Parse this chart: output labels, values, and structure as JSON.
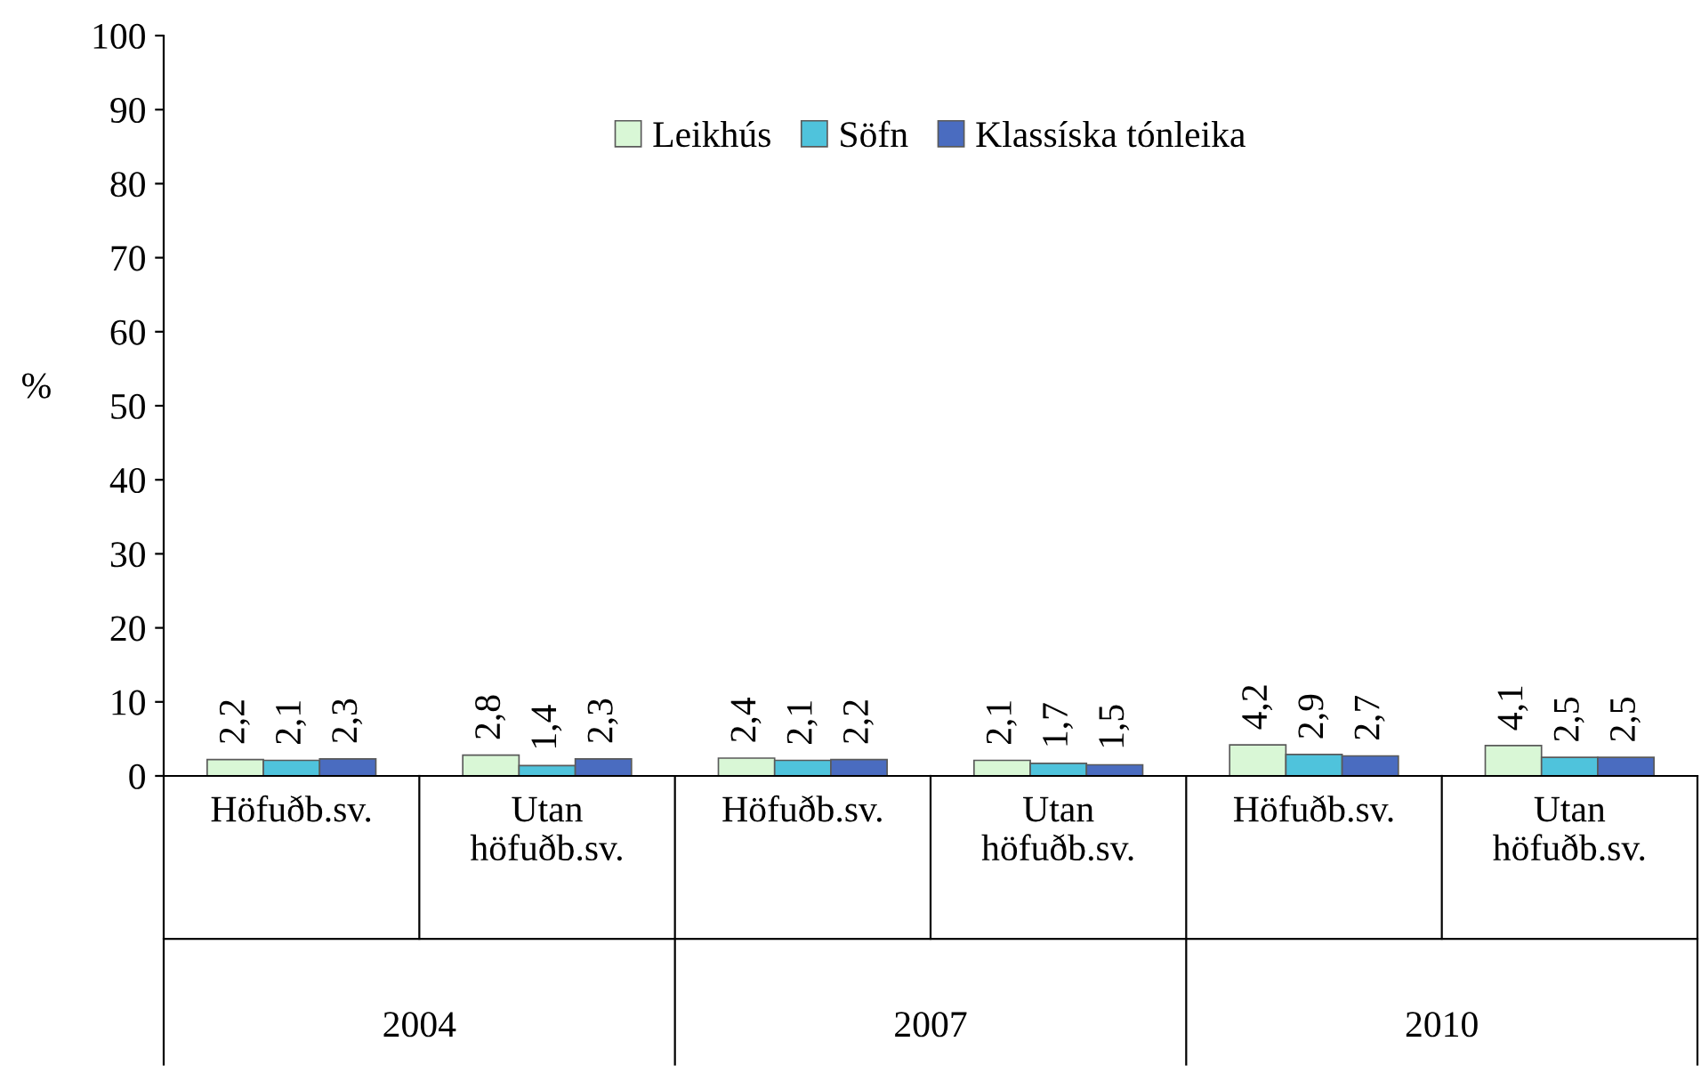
{
  "chart_data": {
    "type": "bar",
    "ylabel": "%",
    "categories": [
      "Höfuðb.sv.",
      "Utan\nhöfuðb.sv.",
      "Höfuðb.sv.",
      "Utan\nhöfuðb.sv.",
      "Höfuðb.sv.",
      "Utan\nhöfuðb.sv."
    ],
    "annotations": [
      "2004",
      "2007",
      "2010"
    ],
    "series": [
      {
        "name": "Leikhús",
        "color": "#d9f7d6",
        "values": [
          2.2,
          2.8,
          2.4,
          2.1,
          4.2,
          4.1
        ],
        "value_labels": [
          "2,2",
          "2,8",
          "2,4",
          "2,1",
          "4,2",
          "4,1"
        ]
      },
      {
        "name": "Söfn",
        "color": "#4fc3dc",
        "values": [
          2.1,
          1.4,
          2.1,
          1.7,
          2.9,
          2.5
        ],
        "value_labels": [
          "2,1",
          "1,4",
          "2,1",
          "1,7",
          "2,9",
          "2,5"
        ]
      },
      {
        "name": "Klassíska tónleika",
        "color": "#4a6cc0",
        "values": [
          2.3,
          2.3,
          2.2,
          1.5,
          2.7,
          2.5
        ],
        "value_labels": [
          "2,3",
          "2,3",
          "2,2",
          "1,5",
          "2,7",
          "2,5"
        ]
      }
    ],
    "ylim": [
      0,
      100
    ],
    "yticks": [
      0,
      10,
      20,
      30,
      40,
      50,
      60,
      70,
      80,
      90,
      100
    ],
    "grid": false,
    "legend": "top"
  }
}
